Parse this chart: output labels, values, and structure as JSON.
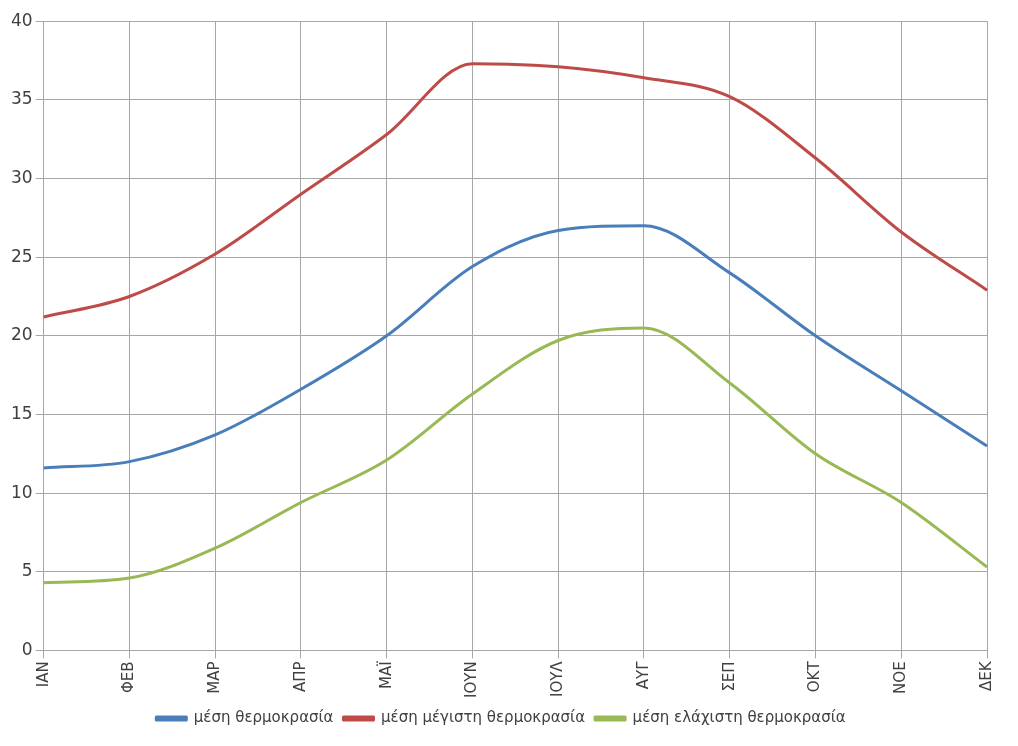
{
  "chart_data": {
    "type": "line",
    "categories": [
      "ΙΑΝ",
      "ΦΕΒ",
      "ΜΑΡ",
      "ΑΠΡ",
      "ΜΑΪ",
      "ΙΟΥΝ",
      "ΙΟΥΛ",
      "ΑΥΓ",
      "ΣΕΠ",
      "ΟΚΤ",
      "ΝΟΕ",
      "ΔΕΚ"
    ],
    "series": [
      {
        "name": "μέση θερμοκρασία",
        "color": "#4a7ebb",
        "values": [
          11.6,
          12.0,
          13.7,
          16.6,
          20.0,
          24.4,
          26.7,
          27.0,
          24.0,
          20.0,
          16.5,
          13.0
        ]
      },
      {
        "name": "μέση μέγιστη θερμοκρασία",
        "color": "#be4b48",
        "values": [
          21.2,
          22.5,
          25.2,
          29.0,
          32.8,
          37.3,
          37.1,
          36.4,
          35.2,
          31.3,
          26.6,
          22.9
        ]
      },
      {
        "name": "μέση ελάχιστη θερμοκρασία",
        "color": "#98b954",
        "values": [
          4.3,
          4.6,
          6.5,
          9.4,
          12.1,
          16.3,
          19.7,
          20.5,
          17.0,
          12.5,
          9.4,
          5.3
        ]
      }
    ],
    "ylim": [
      0,
      40
    ],
    "yticks": [
      0,
      5,
      10,
      15,
      20,
      25,
      30,
      35,
      40
    ],
    "grid": true,
    "legend": "bottom",
    "marker": "none",
    "line_style": "solid"
  }
}
